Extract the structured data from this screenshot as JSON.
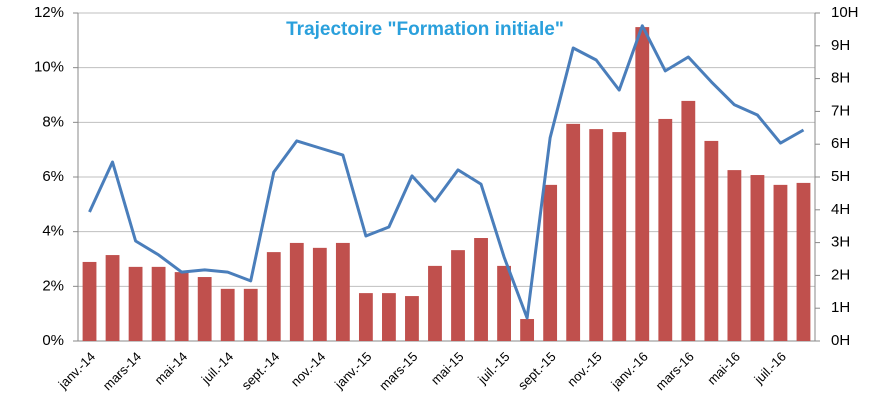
{
  "chart_data": {
    "type": "bar-line",
    "title": "Trajectoire \"Formation initiale\"",
    "categories": [
      "janv.-14",
      null,
      "mars-14",
      null,
      "mai-14",
      null,
      "juil.-14",
      null,
      "sept.-14",
      null,
      "nov.-14",
      null,
      "janv.-15",
      null,
      "mars-15",
      null,
      "mai-15",
      null,
      "juil.-15",
      null,
      "sept.-15",
      null,
      "nov.-15",
      null,
      "janv.-16",
      null,
      "mars-16",
      null,
      "mai-16",
      null,
      "juil.-16",
      null
    ],
    "series": [
      {
        "type": "bar",
        "axis": "y2",
        "color": "#c0504d",
        "values": [
          2.41,
          2.62,
          2.26,
          2.26,
          2.1,
          1.95,
          1.59,
          1.59,
          2.71,
          2.99,
          2.84,
          2.99,
          1.46,
          1.46,
          1.37,
          2.29,
          2.77,
          3.14,
          2.29,
          0.67,
          4.76,
          6.62,
          6.46,
          6.37,
          9.57,
          6.77,
          7.32,
          6.1,
          5.21,
          5.06,
          4.76,
          4.82
        ]
      },
      {
        "type": "line",
        "axis": "y",
        "color": "#4a7ebb",
        "values": [
          4.72,
          6.55,
          3.66,
          3.15,
          2.52,
          2.6,
          2.52,
          2.2,
          6.18,
          7.32,
          7.06,
          6.8,
          3.84,
          4.17,
          6.04,
          5.12,
          6.26,
          5.74,
          3.07,
          0.84,
          7.43,
          10.72,
          10.28,
          9.18,
          11.53,
          9.88,
          10.39,
          9.48,
          8.64,
          8.27,
          7.24,
          7.72
        ]
      }
    ],
    "ylim": [
      0,
      12
    ],
    "yticks": [
      {
        "value": 0,
        "label": "0%"
      },
      {
        "value": 2,
        "label": "2%"
      },
      {
        "value": 4,
        "label": "4%"
      },
      {
        "value": 6,
        "label": "6%"
      },
      {
        "value": 8,
        "label": "8%"
      },
      {
        "value": 10,
        "label": "10%"
      },
      {
        "value": 12,
        "label": "12%"
      }
    ],
    "y2lim": [
      0,
      10
    ],
    "y2ticks": [
      {
        "value": 0,
        "label": "0H"
      },
      {
        "value": 1,
        "label": "1H"
      },
      {
        "value": 2,
        "label": "2H"
      },
      {
        "value": 3,
        "label": "3H"
      },
      {
        "value": 4,
        "label": "4H"
      },
      {
        "value": 5,
        "label": "5H"
      },
      {
        "value": 6,
        "label": "6H"
      },
      {
        "value": 7,
        "label": "7H"
      },
      {
        "value": 8,
        "label": "8H"
      },
      {
        "value": 9,
        "label": "9H"
      },
      {
        "value": 10,
        "label": "10H"
      }
    ],
    "grid": true
  }
}
